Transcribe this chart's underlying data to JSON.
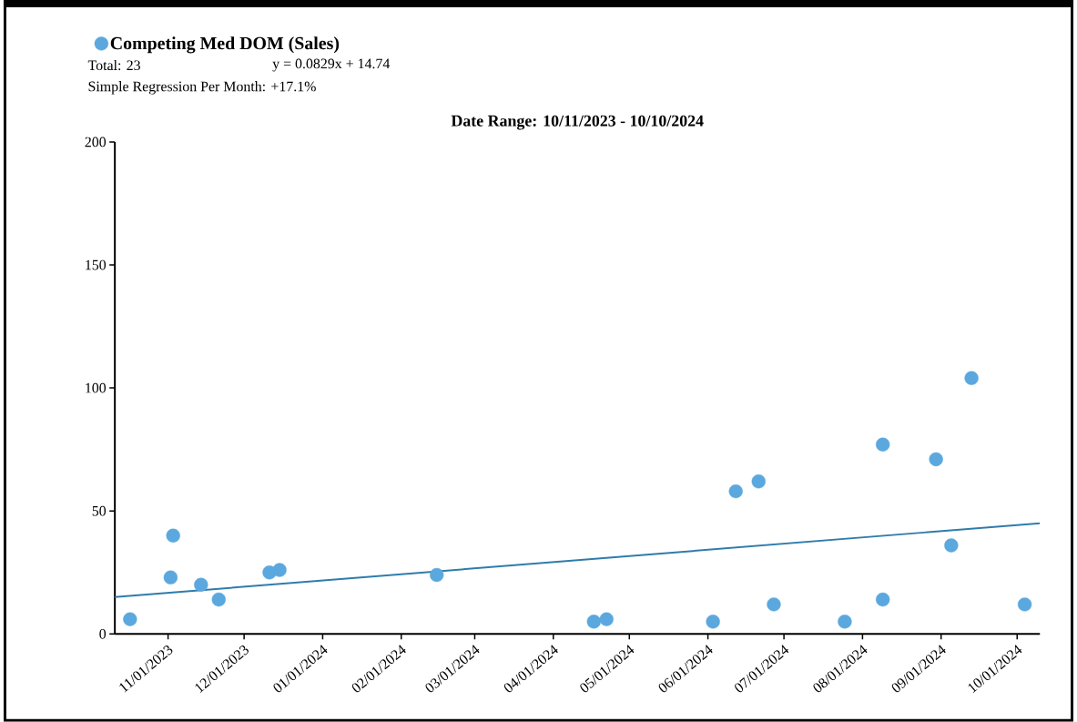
{
  "chart_data": {
    "type": "scatter",
    "title": "Date Range: 10/11/2023 - 10/10/2024",
    "annotations": [
      "Total: 23",
      "y = 0.0829x + 14.74",
      "Simple Regression Per Month: +17.1%"
    ],
    "x": [
      "2023-10-17",
      "2023-11-02",
      "2023-11-03",
      "2023-11-14",
      "2023-11-21",
      "2023-12-11",
      "2023-12-15",
      "2024-02-15",
      "2024-04-17",
      "2024-04-22",
      "2024-06-03",
      "2024-06-12",
      "2024-06-21",
      "2024-06-27",
      "2024-07-25",
      "2024-08-09",
      "2024-08-09",
      "2024-08-30",
      "2024-09-05",
      "2024-09-13",
      "2024-10-04"
    ],
    "series": [
      {
        "name": "Competing Med DOM (Sales)",
        "color": "#5ba8de",
        "marker": "circle",
        "values": [
          6,
          23,
          40,
          20,
          14,
          25,
          26,
          24,
          5,
          6,
          5,
          58,
          62,
          12,
          5,
          14,
          77,
          71,
          36,
          104,
          12
        ]
      },
      {
        "type": "line",
        "marker": "none",
        "color": "#2f7cab",
        "x": [
          "2023-10-11",
          "2024-10-10"
        ],
        "values": [
          15,
          45
        ]
      }
    ],
    "xlim": [
      "2023-10-11",
      "2024-10-10"
    ],
    "xticks": [
      {
        "value": "2023-11-01",
        "label": "11/01/2023"
      },
      {
        "value": "2023-12-01",
        "label": "12/01/2023"
      },
      {
        "value": "2024-01-01",
        "label": "01/01/2024"
      },
      {
        "value": "2024-02-01",
        "label": "02/01/2024"
      },
      {
        "value": "2024-03-01",
        "label": "03/01/2024"
      },
      {
        "value": "2024-04-01",
        "label": "04/01/2024"
      },
      {
        "value": "2024-05-01",
        "label": "05/01/2024"
      },
      {
        "value": "2024-06-01",
        "label": "06/01/2024"
      },
      {
        "value": "2024-07-01",
        "label": "07/01/2024"
      },
      {
        "value": "2024-08-01",
        "label": "08/01/2024"
      },
      {
        "value": "2024-09-01",
        "label": "09/01/2024"
      },
      {
        "value": "2024-10-01",
        "label": "10/01/2024"
      }
    ],
    "ylim": [
      0,
      200
    ],
    "yticks": [
      0,
      50,
      100,
      150,
      200
    ],
    "grid": false,
    "legend": "top left",
    "line_style": "solid"
  }
}
